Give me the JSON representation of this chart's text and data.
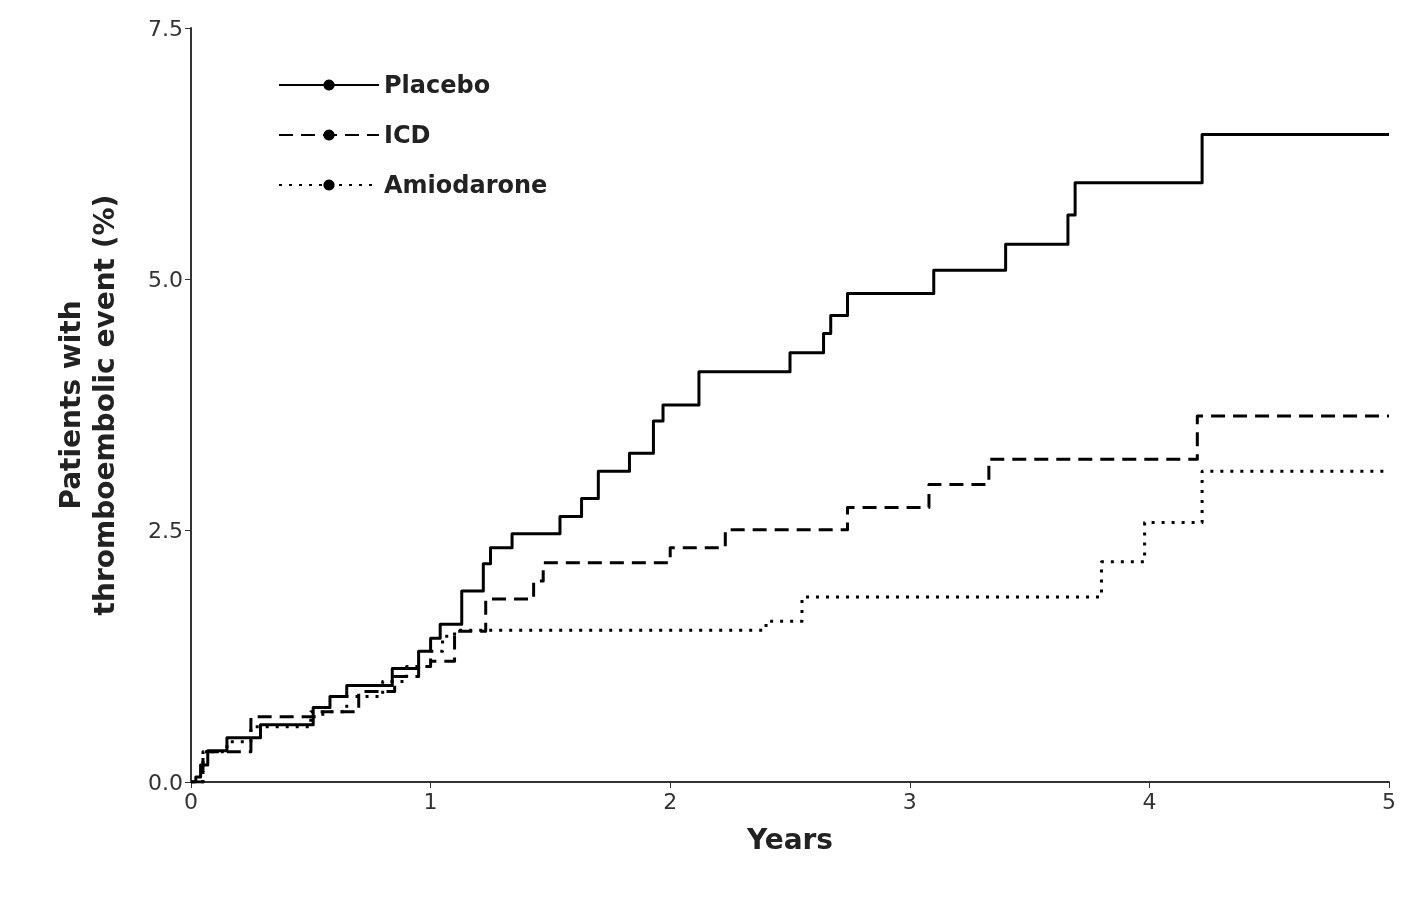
{
  "chart_data": {
    "type": "step",
    "xlabel": "Years",
    "ylabel": "Patients with\nthromboembolic event (%)",
    "xlim": [
      0,
      5
    ],
    "xticks": [
      0,
      1,
      2,
      3,
      4,
      5
    ],
    "ylim": [
      0,
      7.5
    ],
    "yticks": [
      {
        "value": 0,
        "label": "0.0"
      },
      2.5,
      {
        "value": 5,
        "label": "5.0"
      },
      7.5
    ],
    "grid": false,
    "legend": "top left",
    "marker": "none",
    "series": [
      {
        "name": "Placebo",
        "color": "#000000",
        "line_style": "solid",
        "x": [
          0,
          0.02,
          0.04,
          0.07,
          0.15,
          0.29,
          0.51,
          0.58,
          0.65,
          0.84,
          0.95,
          1.0,
          1.04,
          1.13,
          1.22,
          1.25,
          1.34,
          1.54,
          1.63,
          1.7,
          1.83,
          1.93,
          1.97,
          2.12,
          2.5,
          2.64,
          2.67,
          2.74,
          3.1,
          3.4,
          3.66,
          3.69,
          4.22,
          5
        ],
        "values": [
          0,
          0.05,
          0.17,
          0.31,
          0.44,
          0.57,
          0.74,
          0.85,
          0.96,
          1.13,
          1.3,
          1.43,
          1.57,
          1.9,
          2.17,
          2.33,
          2.47,
          2.64,
          2.82,
          3.09,
          3.27,
          3.59,
          3.75,
          4.08,
          4.27,
          4.46,
          4.64,
          4.86,
          5.09,
          5.35,
          5.64,
          5.96,
          6.44,
          6.44
        ]
      },
      {
        "name": "ICD",
        "color": "#000000",
        "line_style": "dashed",
        "x": [
          0,
          0.05,
          0.25,
          0.55,
          0.7,
          0.85,
          0.95,
          1.0,
          1.1,
          1.23,
          1.43,
          1.47,
          2.0,
          2.23,
          2.74,
          3.08,
          3.33,
          4.2,
          5
        ],
        "values": [
          0,
          0.3,
          0.65,
          0.7,
          0.9,
          1.05,
          1.15,
          1.2,
          1.5,
          1.82,
          2.0,
          2.18,
          2.33,
          2.51,
          2.73,
          2.96,
          3.21,
          3.64,
          3.64
        ]
      },
      {
        "name": "Amiodarone",
        "color": "#000000",
        "line_style": "dotted",
        "x": [
          0,
          0.05,
          0.15,
          0.25,
          0.5,
          0.65,
          0.8,
          0.9,
          1.0,
          1.05,
          1.1,
          2.4,
          2.55,
          3.8,
          3.98,
          4.22,
          5
        ],
        "values": [
          0,
          0.3,
          0.4,
          0.55,
          0.7,
          0.85,
          1.0,
          1.15,
          1.3,
          1.45,
          1.51,
          1.6,
          1.84,
          2.19,
          2.58,
          3.09,
          3.09
        ]
      }
    ]
  }
}
